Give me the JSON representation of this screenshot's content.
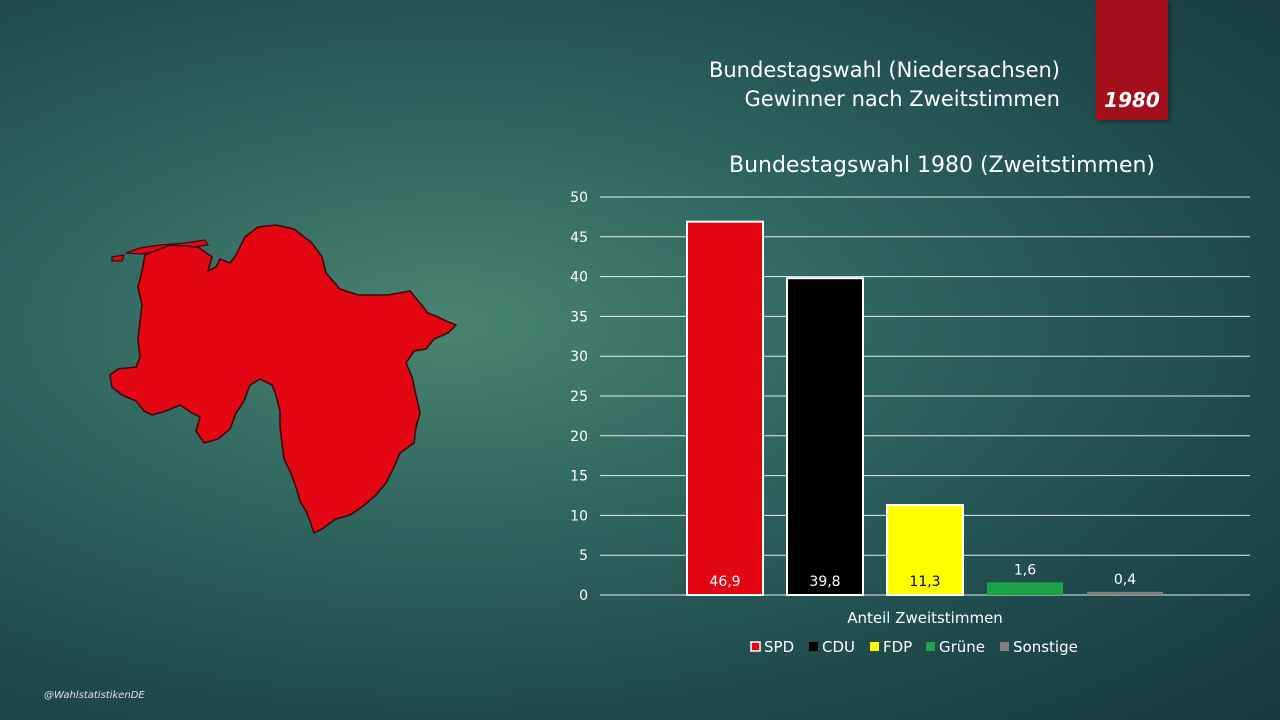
{
  "header": {
    "line1": "Bundestagswahl (Niedersachsen)",
    "line2": "Gewinner nach Zweitstimmen",
    "year": "1980"
  },
  "map": {
    "fill_color": "#e30613",
    "party": "SPD"
  },
  "footer": {
    "credit": "@WahlstatistikenDE"
  },
  "chart_data": {
    "type": "bar",
    "title": "Bundestagswahl 1980 (Zweitstimmen)",
    "xlabel": "Anteil Zweitstimmen",
    "ylabel": "",
    "ylim": [
      0,
      50
    ],
    "yticks": [
      0,
      5,
      10,
      15,
      20,
      25,
      30,
      35,
      40,
      45,
      50
    ],
    "grid": true,
    "legend_position": "bottom",
    "series": [
      {
        "name": "SPD",
        "value": 46.9,
        "label": "46,9",
        "color": "#e30613"
      },
      {
        "name": "CDU",
        "value": 39.8,
        "label": "39,8",
        "color": "#000000"
      },
      {
        "name": "FDP",
        "value": 11.3,
        "label": "11,3",
        "color": "#ffff00"
      },
      {
        "name": "Grüne",
        "value": 1.6,
        "label": "1,6",
        "color": "#1aa34a"
      },
      {
        "name": "Sonstige",
        "value": 0.4,
        "label": "0,4",
        "color": "#808080"
      }
    ]
  }
}
